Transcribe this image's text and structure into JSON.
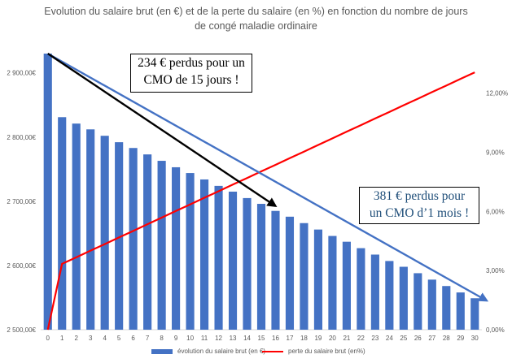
{
  "chart_data": {
    "type": "bar",
    "title_line1": "Evolution du salaire brut (en €) et de la perte du salaire (en %) en fonction du nombre de jours",
    "title_line2": "de congé maladie ordinaire",
    "x": [
      0,
      1,
      2,
      3,
      4,
      5,
      6,
      7,
      8,
      9,
      10,
      11,
      12,
      13,
      14,
      15,
      16,
      17,
      18,
      19,
      20,
      21,
      22,
      23,
      24,
      25,
      26,
      27,
      28,
      29,
      30
    ],
    "y_left_ticks": [
      "2 500,00€",
      "2 600,00€",
      "2 700,00€",
      "2 800,00€",
      "2 900,00€"
    ],
    "y_left_range": [
      2500,
      2930
    ],
    "y_right_ticks": [
      "0,00%",
      "3,00%",
      "6,00%",
      "9,00%",
      "12,00%"
    ],
    "y_right_range": [
      0,
      14.0
    ],
    "series": [
      {
        "name": "évolution du salaire brut (en €)",
        "kind": "bar",
        "color": "#4472C4",
        "values": [
          2930,
          2831,
          2821,
          2812,
          2802,
          2792,
          2783,
          2773,
          2763,
          2753,
          2744,
          2734,
          2724,
          2715,
          2705,
          2696,
          2685,
          2676,
          2666,
          2656,
          2646,
          2637,
          2627,
          2617,
          2607,
          2598,
          2588,
          2578,
          2568,
          2558,
          2549
        ]
      },
      {
        "name": "perte du salaire brut (en%)",
        "kind": "line",
        "color": "#FF0000",
        "values": [
          0,
          3.34,
          3.67,
          4.01,
          4.34,
          4.68,
          5.01,
          5.35,
          5.68,
          6.02,
          6.35,
          6.69,
          7.02,
          7.36,
          7.69,
          8.03,
          8.36,
          8.7,
          9.03,
          9.37,
          9.7,
          10.04,
          10.37,
          10.71,
          11.04,
          11.38,
          11.71,
          12.05,
          12.38,
          12.72,
          13.05
        ]
      }
    ],
    "annotations": {
      "black_arrow_label": [
        "234 € perdus pour un",
        "CMO de 15 jours !"
      ],
      "blue_arrow_label": [
        "381 € perdus pour",
        "un CMO d’1 mois !"
      ],
      "black_arrow_x": [
        0,
        16
      ],
      "blue_arrow_x": [
        0,
        30.5
      ]
    },
    "grid": false,
    "legend_position": "bottom"
  },
  "colors": {
    "bar": "#4472C4",
    "line": "#FF0000",
    "blue_arrow": "#4472C4",
    "black_arrow": "#000000",
    "axis_text": "#595959",
    "blue_callout_text": "#1F4E79"
  }
}
